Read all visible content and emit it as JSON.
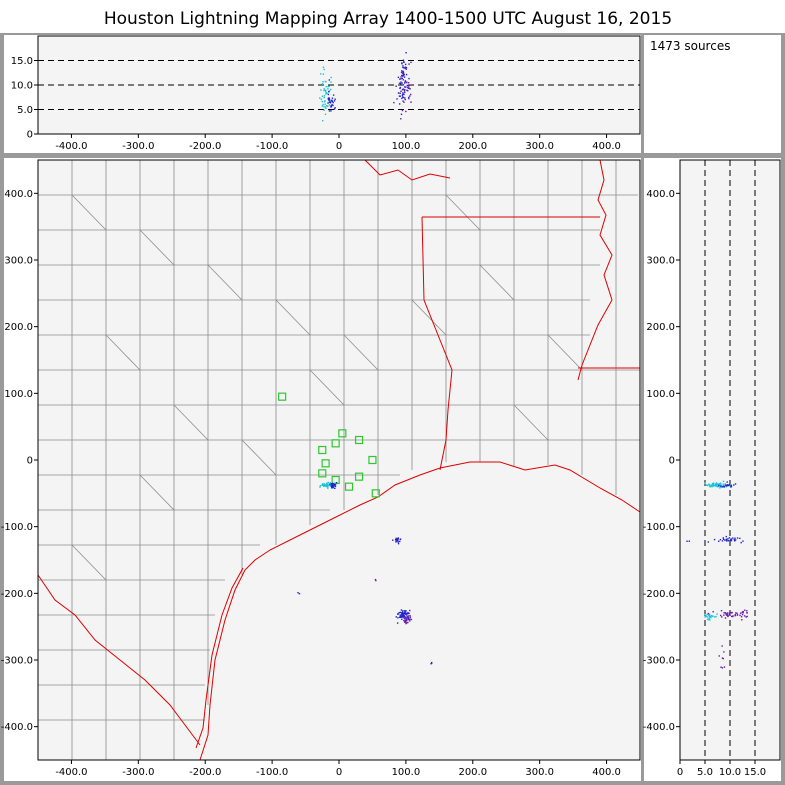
{
  "title": "Houston Lightning Mapping Array   1400-1500 UTC  August 16, 2015",
  "source_count": "1473 sources",
  "colors": {
    "panel_bg": "#f4f4f4",
    "frame": "#9a9a9a",
    "county_line": "#8c8c8c",
    "state_line": "#dd0000",
    "station": "#2ec82e",
    "source_early": "#17c3d8",
    "source_mid": "#2222cc",
    "source_late": "#6a1aa8"
  },
  "chart_data": [
    {
      "type": "scatter",
      "panel": "altitude-vs-east-west",
      "x_ticks": [
        "-400.0",
        "-300.0",
        "-200.0",
        "-100.0",
        "0",
        "100.0",
        "200.0",
        "300.0",
        "400.0"
      ],
      "y_ticks": [
        "0",
        "5.0",
        "10.0",
        "15.0"
      ],
      "xlim": [
        -450,
        450
      ],
      "ylim": [
        0,
        20
      ],
      "dashed_levels": [
        5,
        10,
        15
      ],
      "clusters": [
        {
          "x": -20,
          "y": 8.0,
          "n": 50,
          "sx": 4,
          "sy": 2.2,
          "color": "source_early"
        },
        {
          "x": -12,
          "y": 6.5,
          "n": 30,
          "sx": 3,
          "sy": 1.5,
          "color": "source_mid"
        },
        {
          "x": 97,
          "y": 9.5,
          "n": 70,
          "sx": 5,
          "sy": 3.0,
          "color": "source_mid"
        },
        {
          "x": 100,
          "y": 10.0,
          "n": 30,
          "sx": 6,
          "sy": 3.5,
          "color": "source_late"
        }
      ]
    },
    {
      "type": "scatter",
      "panel": "plan-view-map",
      "x_ticks": [
        "-400.0",
        "-300.0",
        "-200.0",
        "-100.0",
        "0",
        "100.0",
        "200.0",
        "300.0",
        "400.0"
      ],
      "y_ticks": [
        "400.0",
        "300.0",
        "200.0",
        "100.0",
        "0",
        "-100.0",
        "-200.0",
        "-300.0",
        "-400.0"
      ],
      "xlim": [
        -450,
        450
      ],
      "ylim": [
        -450,
        450
      ],
      "stations": [
        [
          -85,
          95
        ],
        [
          -25,
          15
        ],
        [
          -5,
          25
        ],
        [
          5,
          40
        ],
        [
          30,
          30
        ],
        [
          -25,
          -20
        ],
        [
          -5,
          -30
        ],
        [
          15,
          -40
        ],
        [
          30,
          -25
        ],
        [
          50,
          0
        ],
        [
          55,
          -50
        ],
        [
          -20,
          -5
        ]
      ],
      "clusters": [
        {
          "x": -20,
          "y": -38,
          "n": 40,
          "sx": 5,
          "sy": 2,
          "color": "source_early"
        },
        {
          "x": -10,
          "y": -38,
          "n": 25,
          "sx": 4,
          "sy": 2,
          "color": "source_mid"
        },
        {
          "x": 88,
          "y": -120,
          "n": 22,
          "sx": 2,
          "sy": 2,
          "color": "source_mid"
        },
        {
          "x": 97,
          "y": -233,
          "n": 60,
          "sx": 5,
          "sy": 4,
          "color": "source_mid"
        },
        {
          "x": 102,
          "y": -238,
          "n": 22,
          "sx": 4,
          "sy": 4,
          "color": "source_late"
        },
        {
          "x": 138,
          "y": -305,
          "n": 3,
          "sx": 1,
          "sy": 1,
          "color": "source_mid"
        },
        {
          "x": -60,
          "y": -200,
          "n": 2,
          "sx": 1,
          "sy": 1,
          "color": "source_mid"
        },
        {
          "x": 55,
          "y": -180,
          "n": 2,
          "sx": 1,
          "sy": 1,
          "color": "source_late"
        }
      ]
    },
    {
      "type": "scatter",
      "panel": "north-south-vs-altitude",
      "x_ticks": [
        "0",
        "5.0",
        "10.0",
        "15.0"
      ],
      "y_ticks": [
        "400.0",
        "300.0",
        "200.0",
        "100.0",
        "0",
        "-100.0",
        "-200.0",
        "-300.0",
        "-400.0"
      ],
      "xlim": [
        0,
        20
      ],
      "ylim": [
        -450,
        450
      ],
      "dashed_levels": [
        5,
        10,
        15
      ],
      "clusters": [
        {
          "x": 7.5,
          "y": -38,
          "n": 60,
          "sx": 1.2,
          "sy": 2,
          "color": "source_early"
        },
        {
          "x": 9.5,
          "y": -38,
          "n": 20,
          "sx": 1.0,
          "sy": 2,
          "color": "source_mid"
        },
        {
          "x": 10.0,
          "y": -120,
          "n": 30,
          "sx": 1.5,
          "sy": 2,
          "color": "source_mid"
        },
        {
          "x": 6.0,
          "y": -235,
          "n": 25,
          "sx": 0.6,
          "sy": 3,
          "color": "source_early"
        },
        {
          "x": 10.5,
          "y": -232,
          "n": 50,
          "sx": 2.2,
          "sy": 3,
          "color": "source_late"
        },
        {
          "x": 8.5,
          "y": -300,
          "n": 8,
          "sx": 0.4,
          "sy": 15,
          "color": "source_late"
        },
        {
          "x": 2.0,
          "y": -122,
          "n": 2,
          "sx": 0.3,
          "sy": 1,
          "color": "source_mid"
        }
      ]
    }
  ]
}
